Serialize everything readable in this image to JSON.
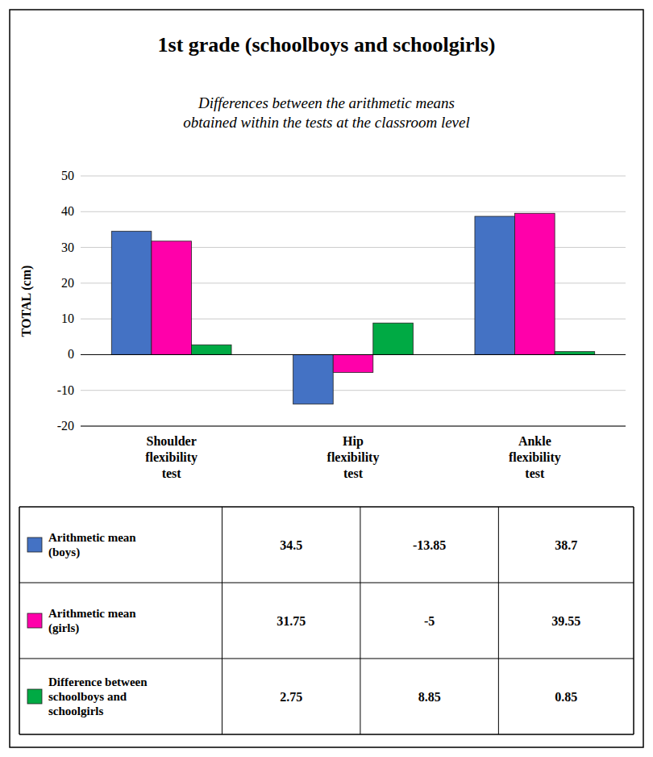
{
  "chart_data": {
    "type": "bar",
    "title": "1st grade (schoolboys and schoolgirls)",
    "subtitle": "Differences between the arithmetic means\nobtained within the tests at the classroom level",
    "y_label": "TOTAL (cm)",
    "categories": [
      "Shoulder\nflexibility\ntest",
      "Hip\nflexibility\ntest",
      "Ankle\nflexibility\ntest"
    ],
    "series": [
      {
        "name": "Arithmetic mean\n(boys)",
        "color": "#4472C4",
        "values": [
          34.5,
          -13.85,
          38.7
        ]
      },
      {
        "name": "Arithmetic mean\n(girls)",
        "color": "#FF00AA",
        "values": [
          31.75,
          -5,
          39.55
        ]
      },
      {
        "name": "Difference between\nschoolboys and\nschoolgirls",
        "color": "#00AA44",
        "values": [
          2.75,
          8.85,
          0.85
        ]
      }
    ],
    "ylim": [
      -20,
      50
    ],
    "yticks": [
      -20,
      -10,
      0,
      10,
      20,
      30,
      40,
      50
    ],
    "grid": true
  }
}
